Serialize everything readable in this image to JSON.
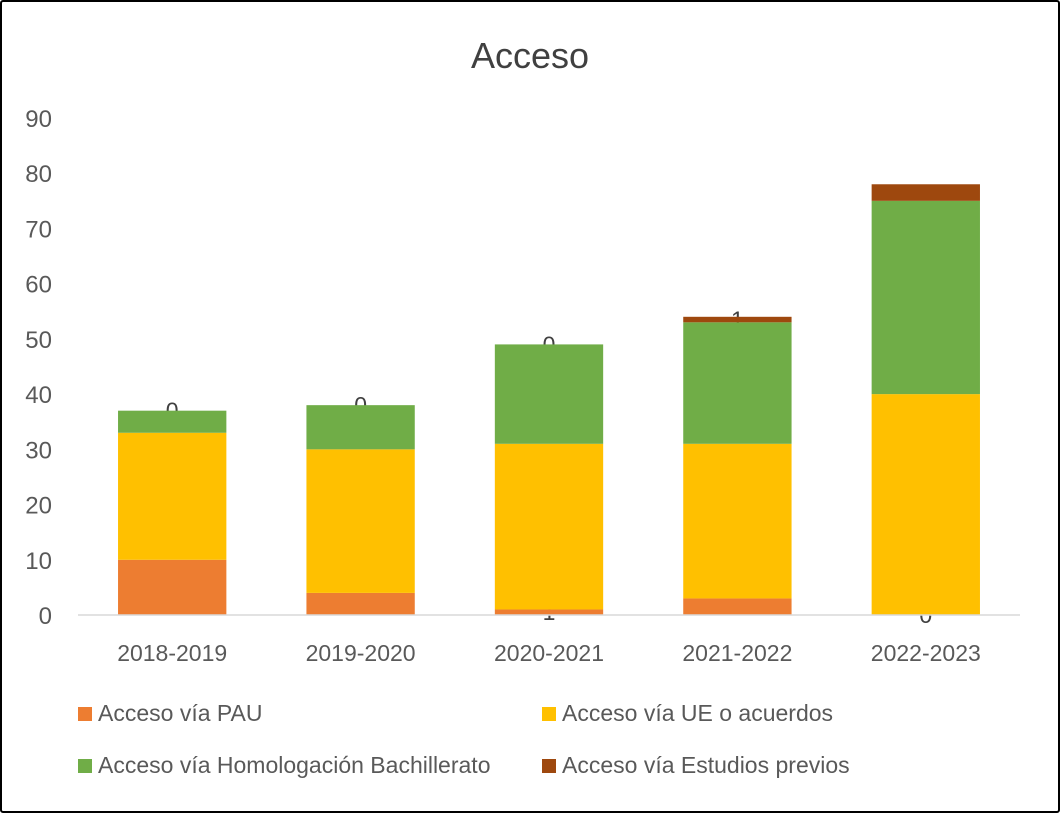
{
  "chart_data": {
    "type": "bar",
    "stacked": true,
    "title": "Acceso",
    "xlabel": "",
    "ylabel": "",
    "ylim": [
      0,
      90
    ],
    "yticks": [
      "0",
      "10",
      "20",
      "30",
      "40",
      "50",
      "60",
      "70",
      "80",
      "90"
    ],
    "grid": false,
    "legend_position": "bottom",
    "categories": [
      "2018-2019",
      "2019-2020",
      "2020-2021",
      "2021-2022",
      "2022-2023"
    ],
    "series": [
      {
        "name": "Acceso vía PAU",
        "color": "#ED7D31",
        "values": [
          10,
          4,
          1,
          3,
          0
        ]
      },
      {
        "name": "Acceso vía UE o acuerdos",
        "color": "#FFC000",
        "values": [
          23,
          26,
          30,
          28,
          40
        ]
      },
      {
        "name": "Acceso vía Homologación Bachillerato",
        "color": "#70AD47",
        "values": [
          4,
          8,
          18,
          22,
          35
        ]
      },
      {
        "name": "Acceso vía Estudios previos",
        "color": "#9E480E",
        "values": [
          0,
          0,
          0,
          1,
          3
        ]
      }
    ]
  }
}
